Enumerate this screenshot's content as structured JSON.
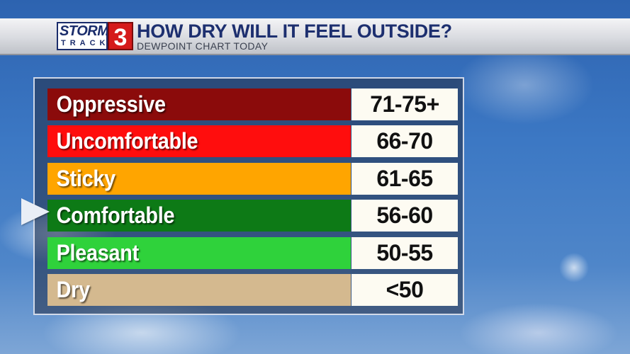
{
  "logo": {
    "storm": "STORM",
    "track": "TRACK",
    "number": "3"
  },
  "header": {
    "title": "HOW DRY WILL IT FEEL OUTSIDE?",
    "subtitle": "DEWPOINT CHART TODAY"
  },
  "rows": [
    {
      "label": "Oppressive",
      "value": "71-75+",
      "color": "#8b0b0b"
    },
    {
      "label": "Uncomfortable",
      "value": "66-70",
      "color": "#ff0d0d"
    },
    {
      "label": "Sticky",
      "value": "61-65",
      "color": "#ffa500"
    },
    {
      "label": "Comfortable",
      "value": "56-60",
      "color": "#0d7a16"
    },
    {
      "label": "Pleasant",
      "value": "50-55",
      "color": "#2fd23b"
    },
    {
      "label": "Dry",
      "value": "<50",
      "color": "#d4b98f"
    }
  ],
  "current_indicator": {
    "icon": "pointer-arrow-icon",
    "row": "Comfortable"
  }
}
